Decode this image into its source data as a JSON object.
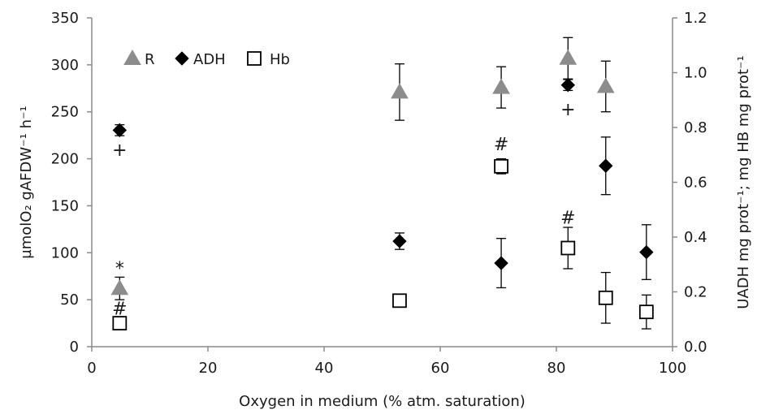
{
  "chart_data": {
    "type": "scatter",
    "xlabel": "Oxygen in medium (% atm. saturation)",
    "ylabel_left": "µmolO₂ gAFDW⁻¹ h⁻¹",
    "ylabel_right": "UADH mg prot⁻¹; mg HB mg prot⁻¹",
    "xlim": [
      0,
      100
    ],
    "xticks": [
      0,
      20,
      40,
      60,
      80,
      100
    ],
    "ylim_left": [
      0,
      350
    ],
    "yticks_left": [
      0,
      50,
      100,
      150,
      200,
      250,
      300,
      350
    ],
    "ylim_right": [
      0.0,
      1.2
    ],
    "yticks_right": [
      "0.0",
      "0.2",
      "0.4",
      "0.6",
      "0.8",
      "1.0",
      "1.2"
    ],
    "grid": false,
    "legend_position": "top-left",
    "series": [
      {
        "name": "R",
        "marker": "triangle",
        "color": "#8c8c8c",
        "axis": "left",
        "points": [
          {
            "x": 4.8,
            "y": 62,
            "err": 12
          },
          {
            "x": 53,
            "y": 271,
            "err": 30
          },
          {
            "x": 70.5,
            "y": 276,
            "err": 22
          },
          {
            "x": 82,
            "y": 307,
            "err": 22
          },
          {
            "x": 88.5,
            "y": 277,
            "err": 27
          }
        ]
      },
      {
        "name": "ADH",
        "marker": "diamond",
        "color": "#000000",
        "axis": "right",
        "points": [
          {
            "x": 4.8,
            "y": 0.79,
            "err": 0.02
          },
          {
            "x": 53,
            "y": 0.385,
            "err": 0.03
          },
          {
            "x": 70.5,
            "y": 0.305,
            "err": 0.09
          },
          {
            "x": 82,
            "y": 0.955,
            "err": 0.02
          },
          {
            "x": 88.5,
            "y": 0.66,
            "err": 0.105
          },
          {
            "x": 95.5,
            "y": 0.345,
            "err": 0.1
          }
        ]
      },
      {
        "name": "Hb",
        "marker": "square-open",
        "color": "#000000",
        "axis": "left",
        "points": [
          {
            "x": 4.8,
            "y": 25,
            "err": 0
          },
          {
            "x": 53,
            "y": 49,
            "err": 0
          },
          {
            "x": 70.5,
            "y": 192,
            "err": 8
          },
          {
            "x": 82,
            "y": 105,
            "err": 22
          },
          {
            "x": 88.5,
            "y": 52,
            "err": 27
          },
          {
            "x": 95.5,
            "y": 37,
            "err": 18
          }
        ]
      }
    ],
    "annotations": [
      {
        "text": "+",
        "x": 4.8,
        "y": 210
      },
      {
        "text": "*",
        "x": 4.8,
        "y": 84
      },
      {
        "text": "#",
        "x": 4.8,
        "y": 41
      },
      {
        "text": "#",
        "x": 70.5,
        "y": 216
      },
      {
        "text": "+",
        "x": 82,
        "y": 253
      },
      {
        "text": "#",
        "x": 82,
        "y": 138
      }
    ]
  }
}
